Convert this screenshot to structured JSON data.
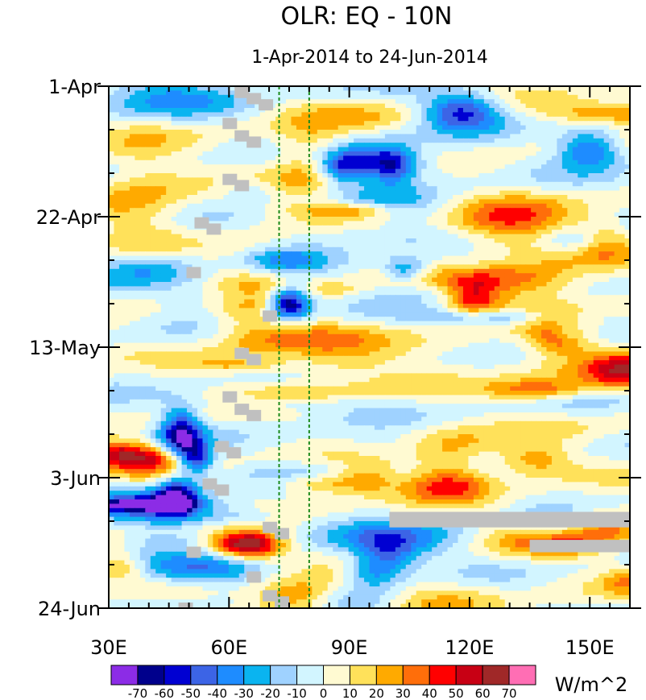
{
  "chart_data": {
    "type": "heatmap",
    "title": "OLR: EQ - 10N",
    "subtitle": "1-Apr-2014 to 24-Jun-2014",
    "xlabel": "",
    "ylabel": "",
    "xlim": [
      30,
      160
    ],
    "ylim_days": [
      0,
      84
    ],
    "y_direction": "time increases downward",
    "x_ticks": [
      {
        "value": 30,
        "label": "30E"
      },
      {
        "value": 60,
        "label": "60E"
      },
      {
        "value": 90,
        "label": "90E"
      },
      {
        "value": 120,
        "label": "120E"
      },
      {
        "value": 150,
        "label": "150E"
      }
    ],
    "y_ticks": [
      {
        "value": 0,
        "label": "1-Apr"
      },
      {
        "value": 21,
        "label": "22-Apr"
      },
      {
        "value": 42,
        "label": "13-May"
      },
      {
        "value": 63,
        "label": "3-Jun"
      },
      {
        "value": 84,
        "label": "24-Jun"
      }
    ],
    "reference_lines_lon": [
      72.5,
      80
    ],
    "reference_line_color": "#1a8a1a",
    "missing_color": "#c0c0c0",
    "colorbar": {
      "units": "W/m^2",
      "levels": [
        "-70",
        "-60",
        "-50",
        "-40",
        "-30",
        "-20",
        "-10",
        "0",
        "10",
        "20",
        "30",
        "40",
        "50",
        "60",
        "70"
      ],
      "colors": [
        "#8c2ce6",
        "#00008c",
        "#0000d2",
        "#3c64e6",
        "#1e8cff",
        "#0ab4f0",
        "#9fd2ff",
        "#d2f5ff",
        "#fffad2",
        "#ffe15a",
        "#ffaa00",
        "#ff6e0a",
        "#ff0000",
        "#c80014",
        "#a02828",
        "#ff6eb4"
      ]
    },
    "anomaly_features": [
      {
        "lon": 75,
        "day": 35,
        "lon_width": 5,
        "day_width": 2.5,
        "value": -75
      },
      {
        "lon": 48,
        "day": 56,
        "lon_width": 5,
        "day_width": 4,
        "value": -65
      },
      {
        "lon": 47,
        "day": 66,
        "lon_width": 5,
        "day_width": 3,
        "value": -60
      },
      {
        "lon": 52,
        "day": 60,
        "lon_width": 4,
        "day_width": 2.5,
        "value": -55
      },
      {
        "lon": 118,
        "day": 4,
        "lon_width": 10,
        "day_width": 3,
        "value": -55
      },
      {
        "lon": 150,
        "day": 10,
        "lon_width": 8,
        "day_width": 3,
        "value": -50
      },
      {
        "lon": 130,
        "day": 22,
        "lon_width": 14,
        "day_width": 4,
        "value": 38
      },
      {
        "lon": 132,
        "day": 31,
        "lon_width": 18,
        "day_width": 4,
        "value": 40
      },
      {
        "lon": 80,
        "day": 12,
        "lon_width": 10,
        "day_width": 6,
        "value": 30
      },
      {
        "lon": 78,
        "day": 82,
        "lon_width": 12,
        "day_width": 3,
        "value": 48
      },
      {
        "lon": 65,
        "day": 74,
        "lon_width": 8,
        "day_width": 2.5,
        "value": 42
      },
      {
        "lon": 115,
        "day": 64,
        "lon_width": 10,
        "day_width": 3,
        "value": 40
      },
      {
        "lon": 38,
        "day": 18,
        "lon_width": 12,
        "day_width": 10,
        "value": 22
      },
      {
        "lon": 65,
        "day": 35,
        "lon_width": 10,
        "day_width": 8,
        "value": 22
      },
      {
        "lon": 100,
        "day": 73,
        "lon_width": 20,
        "day_width": 3,
        "value": -30
      }
    ],
    "missing_regions": [
      {
        "lon0": 100,
        "lon1": 160,
        "day0": 68.5,
        "day1": 71,
        "note": "gray band"
      },
      {
        "lon0": 135,
        "lon1": 160,
        "day0": 73,
        "day1": 75,
        "note": "gray band"
      },
      {
        "lon0": 63,
        "lon1": 72,
        "day0": 0,
        "day1": 7,
        "note": "scattered gray cells near 65E-70E"
      }
    ]
  }
}
